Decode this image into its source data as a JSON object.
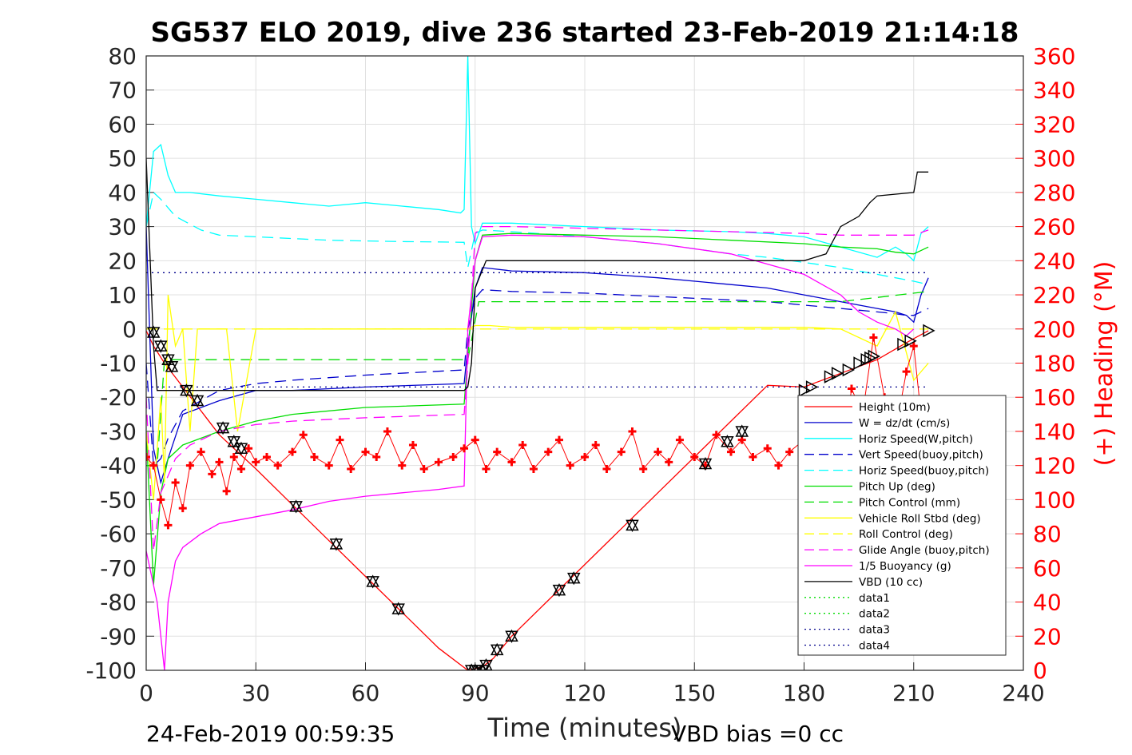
{
  "chart_data": {
    "type": "line",
    "title": "SG537 ELO 2019, dive 236 started 23-Feb-2019 21:14:18",
    "xlabel": "Time (minutes)",
    "ylabel_right": "(+) Heading (°M)",
    "xlim": [
      0,
      240
    ],
    "ylim": [
      -100,
      80
    ],
    "ylim_right": [
      0,
      360
    ],
    "x_ticks": [
      "0",
      "30",
      "60",
      "90",
      "120",
      "150",
      "180",
      "210",
      "240"
    ],
    "y_ticks": [
      "80",
      "70",
      "60",
      "50",
      "40",
      "30",
      "20",
      "10",
      "0",
      "-10",
      "-20",
      "-30",
      "-40",
      "-50",
      "-60",
      "-70",
      "-80",
      "-90",
      "-100"
    ],
    "y_right_ticks": [
      "360",
      "340",
      "320",
      "300",
      "280",
      "260",
      "240",
      "220",
      "200",
      "180",
      "160",
      "140",
      "120",
      "100",
      "80",
      "60",
      "40",
      "20",
      "0"
    ],
    "grid": true,
    "legend_position": "bottom-right",
    "footer_left": "24-Feb-2019 00:59:35",
    "footer_right": "VBD bias =0 cc",
    "series": [
      {
        "name": "Height (10m)",
        "color": "#ff0000",
        "style": "solid",
        "x": [
          0,
          2,
          5,
          10,
          20,
          30,
          40,
          50,
          60,
          70,
          80,
          88,
          90,
          92,
          95,
          100,
          110,
          120,
          130,
          140,
          150,
          160,
          170,
          180,
          190,
          200,
          208,
          214
        ],
        "y": [
          -0.5,
          -5,
          -10,
          -17,
          -31,
          -41,
          -51.5,
          -62,
          -72.5,
          -83,
          -93.5,
          -100,
          -99.5,
          -99,
          -96.5,
          -90,
          -79.5,
          -69,
          -58.5,
          -48,
          -37.5,
          -27,
          -16.5,
          -17,
          -13,
          -9,
          -4,
          -0.5
        ]
      },
      {
        "name": "W = dz/dt (cm/s)",
        "color": "#0000cc",
        "style": "solid",
        "x": [
          0,
          2,
          4,
          6,
          10,
          20,
          30,
          40,
          60,
          87,
          88,
          90,
          92,
          100,
          120,
          140,
          160,
          170,
          180,
          190,
          200,
          205,
          208,
          210,
          212,
          214
        ],
        "y": [
          30,
          -35,
          -45,
          -38,
          -25,
          -21,
          -18,
          -18,
          -17,
          -16,
          -5,
          12,
          18,
          17,
          16.5,
          15,
          13,
          12,
          10,
          8,
          6,
          5,
          4,
          2,
          10,
          15
        ]
      },
      {
        "name": "Horiz Speed(W,pitch)",
        "color": "#00ffff",
        "style": "solid",
        "x": [
          0,
          2,
          4,
          6,
          8,
          12,
          20,
          30,
          40,
          50,
          60,
          70,
          80,
          86,
          87,
          88,
          89,
          90,
          92,
          100,
          120,
          140,
          160,
          170,
          180,
          190,
          200,
          205,
          208,
          210,
          212,
          214
        ],
        "y": [
          30,
          52,
          54,
          45,
          40,
          40,
          39,
          38,
          37,
          36,
          37,
          36,
          35,
          34,
          35,
          80,
          30,
          25,
          31,
          31,
          30,
          29,
          28.5,
          28,
          27,
          24,
          21,
          24,
          22,
          20,
          28,
          30
        ]
      },
      {
        "name": "Vert Speed(buoy,pitch)",
        "color": "#0000cc",
        "style": "dashed",
        "x": [
          0,
          2,
          4,
          6,
          10,
          20,
          30,
          40,
          60,
          87,
          88,
          90,
          92,
          100,
          120,
          140,
          160,
          170,
          180,
          190,
          200,
          205,
          208,
          210,
          212,
          214
        ],
        "y": [
          -10,
          -40,
          -38,
          -32,
          -24,
          -18,
          -16,
          -15,
          -13.5,
          -12,
          0,
          9,
          11.5,
          11,
          10.5,
          9.5,
          8.5,
          8,
          7,
          6,
          5,
          4.5,
          4,
          4,
          5,
          6
        ]
      },
      {
        "name": "Horiz Speed(buoy,pitch)",
        "color": "#00ffff",
        "style": "dashed",
        "x": [
          0,
          2,
          4,
          8,
          15,
          20,
          30,
          40,
          50,
          60,
          70,
          80,
          87,
          88,
          90,
          92,
          100,
          120,
          140,
          160,
          170,
          180,
          190,
          200,
          205,
          210,
          214
        ],
        "y": [
          30,
          40,
          38,
          33,
          29,
          27.5,
          27,
          26.5,
          26,
          25.8,
          25.6,
          25.5,
          25.4,
          18,
          28,
          29,
          28.5,
          27,
          25,
          22,
          21,
          19.5,
          18,
          16,
          15,
          14,
          13
        ]
      },
      {
        "name": "Pitch Up (deg)",
        "color": "#00dd00",
        "style": "solid",
        "x": [
          0,
          2,
          4,
          6,
          10,
          20,
          30,
          40,
          60,
          87,
          88,
          90,
          92,
          100,
          120,
          140,
          160,
          180,
          190,
          200,
          205,
          210,
          214
        ],
        "y": [
          -30,
          -75,
          -48,
          -38,
          -34,
          -30,
          -27,
          -25,
          -23,
          -22,
          -8,
          20,
          27.5,
          28,
          27.5,
          27,
          26,
          25,
          24,
          23.5,
          22.5,
          22,
          24
        ]
      },
      {
        "name": "Pitch Control (mm)",
        "color": "#00dd00",
        "style": "dashed",
        "x": [
          0,
          3,
          5,
          87,
          88,
          91,
          190,
          214
        ],
        "y": [
          -40,
          -40,
          -9,
          -9,
          -9,
          8,
          8,
          11
        ]
      },
      {
        "name": "Vehicle Roll Stbd (deg)",
        "color": "#ffff00",
        "style": "solid",
        "x": [
          0,
          2,
          4,
          5,
          6,
          8,
          10,
          12,
          14,
          18,
          22,
          25,
          30,
          35,
          40,
          50,
          60,
          70,
          80,
          86,
          88,
          90,
          92,
          94,
          100,
          120,
          140,
          160,
          180,
          190,
          200,
          205,
          210,
          214
        ],
        "y": [
          -30,
          -50,
          -20,
          -45,
          10,
          -5,
          0,
          -30,
          0,
          0,
          0,
          -30,
          0,
          0,
          0,
          0,
          0,
          0,
          0,
          0,
          0,
          1,
          1,
          1,
          0.5,
          0.5,
          0.5,
          0.5,
          0.5,
          0,
          -5,
          5,
          -15,
          -10
        ]
      },
      {
        "name": "Roll Control (deg)",
        "color": "#ffff00",
        "style": "dashed",
        "x": [
          0,
          5,
          10,
          20,
          40,
          87,
          92,
          120,
          180,
          214
        ],
        "y": [
          0,
          0,
          0,
          0,
          0,
          0,
          0,
          0,
          0,
          0
        ]
      },
      {
        "name": "Glide Angle (buoy,pitch)",
        "color": "#ff00ff",
        "style": "dashed",
        "x": [
          0,
          2,
          4,
          8,
          12,
          20,
          30,
          40,
          60,
          87,
          88,
          90,
          92,
          100,
          120,
          140,
          160,
          180,
          190,
          200,
          205,
          210,
          214
        ],
        "y": [
          -20,
          -65,
          -48,
          -38,
          -34,
          -30,
          -28,
          -27,
          -26,
          -25,
          -10,
          28,
          30,
          30,
          29.5,
          29,
          28.5,
          28,
          27.5,
          27.5,
          27.5,
          27.5,
          29
        ]
      },
      {
        "name": "1/5 Buoyancy (g)",
        "color": "#ff00ff",
        "style": "solid",
        "x": [
          0,
          3,
          5,
          6,
          8,
          10,
          15,
          20,
          30,
          40,
          50,
          60,
          70,
          80,
          87,
          88,
          90,
          92,
          100,
          120,
          140,
          160,
          170,
          180,
          190,
          195,
          200,
          205,
          208,
          210
        ],
        "y": [
          -65,
          -80,
          -100,
          -80,
          -68,
          -64,
          -60,
          -57,
          -55,
          -53,
          -50.5,
          -49,
          -48,
          -47,
          -46,
          0,
          20,
          27,
          27.5,
          27,
          25,
          22,
          19,
          16,
          10,
          5,
          2,
          0,
          -2,
          0
        ]
      },
      {
        "name": "VBD (10 cc)",
        "color": "#000000",
        "style": "solid",
        "x": [
          0,
          2,
          3,
          87,
          88,
          89,
          90,
          93,
          170,
          180,
          186,
          190,
          195,
          198,
          200,
          210,
          211,
          214
        ],
        "y": [
          50,
          -5,
          -18,
          -18,
          -17,
          -10,
          12,
          20,
          20,
          20,
          22,
          30,
          33,
          37,
          39,
          40,
          46,
          46
        ]
      },
      {
        "name": "data1",
        "color": "#00dd00",
        "style": "dotted",
        "x": [],
        "y": []
      },
      {
        "name": "data2",
        "color": "#00dd00",
        "style": "dotted",
        "x": [],
        "y": []
      },
      {
        "name": "data3",
        "color": "#00008b",
        "style": "dotted",
        "x": [
          0,
          214
        ],
        "y": [
          16.5,
          16.5
        ]
      },
      {
        "name": "data4",
        "color": "#00008b",
        "style": "dotted",
        "x": [
          0,
          214
        ],
        "y": [
          -17,
          -17
        ]
      }
    ],
    "heading_series": {
      "axis": "right",
      "color": "#ff0000",
      "marker": "+",
      "x": [
        0,
        2,
        4,
        6,
        8,
        10,
        12,
        15,
        18,
        20,
        22,
        24,
        26,
        28,
        30,
        33,
        36,
        40,
        43,
        46,
        50,
        53,
        56,
        60,
        63,
        66,
        70,
        73,
        76,
        80,
        84,
        87,
        90,
        93,
        96,
        100,
        103,
        106,
        110,
        113,
        116,
        120,
        123,
        126,
        130,
        133,
        136,
        140,
        143,
        146,
        150,
        153,
        156,
        160,
        163,
        166,
        170,
        173,
        176,
        180,
        183,
        186,
        190,
        193,
        196,
        199,
        202,
        205,
        208,
        210,
        212
      ],
      "y": [
        125,
        120,
        100,
        85,
        110,
        95,
        120,
        128,
        115,
        122,
        105,
        125,
        118,
        130,
        122,
        125,
        120,
        128,
        138,
        125,
        120,
        135,
        118,
        128,
        125,
        140,
        120,
        132,
        118,
        122,
        125,
        130,
        135,
        118,
        128,
        122,
        132,
        118,
        128,
        135,
        120,
        125,
        132,
        118,
        128,
        140,
        118,
        128,
        122,
        135,
        125,
        120,
        138,
        128,
        135,
        125,
        130,
        120,
        128,
        135,
        125,
        130,
        120,
        165,
        150,
        195,
        160,
        140,
        175,
        190,
        150
      ]
    },
    "marker_series": [
      {
        "name": "dive markers",
        "color": "#000000",
        "marker": "triangle-down",
        "x": [
          2,
          4,
          6,
          7,
          11,
          14,
          21,
          24,
          26,
          41,
          52,
          62,
          69,
          89,
          90,
          92,
          93,
          96,
          100,
          113,
          117,
          133,
          153,
          159,
          163
        ],
        "y": [
          -1,
          -5,
          -9,
          -11,
          -18,
          -21,
          -29,
          -33,
          -35,
          -52,
          -63,
          -74,
          -82,
          -100,
          -100,
          -100,
          -98.5,
          -94,
          -90,
          -76.5,
          -73,
          -57.5,
          -39.5,
          -33,
          -30
        ]
      },
      {
        "name": "climb markers",
        "color": "#000000",
        "marker": "triangle-right",
        "x": [
          180,
          182,
          187,
          189,
          192,
          195,
          197,
          198,
          199,
          207,
          209,
          214
        ],
        "y": [
          -18,
          -17,
          -14,
          -13,
          -12,
          -10,
          -9,
          -8.5,
          -8,
          -4.5,
          -3.5,
          -0.5
        ]
      }
    ]
  }
}
